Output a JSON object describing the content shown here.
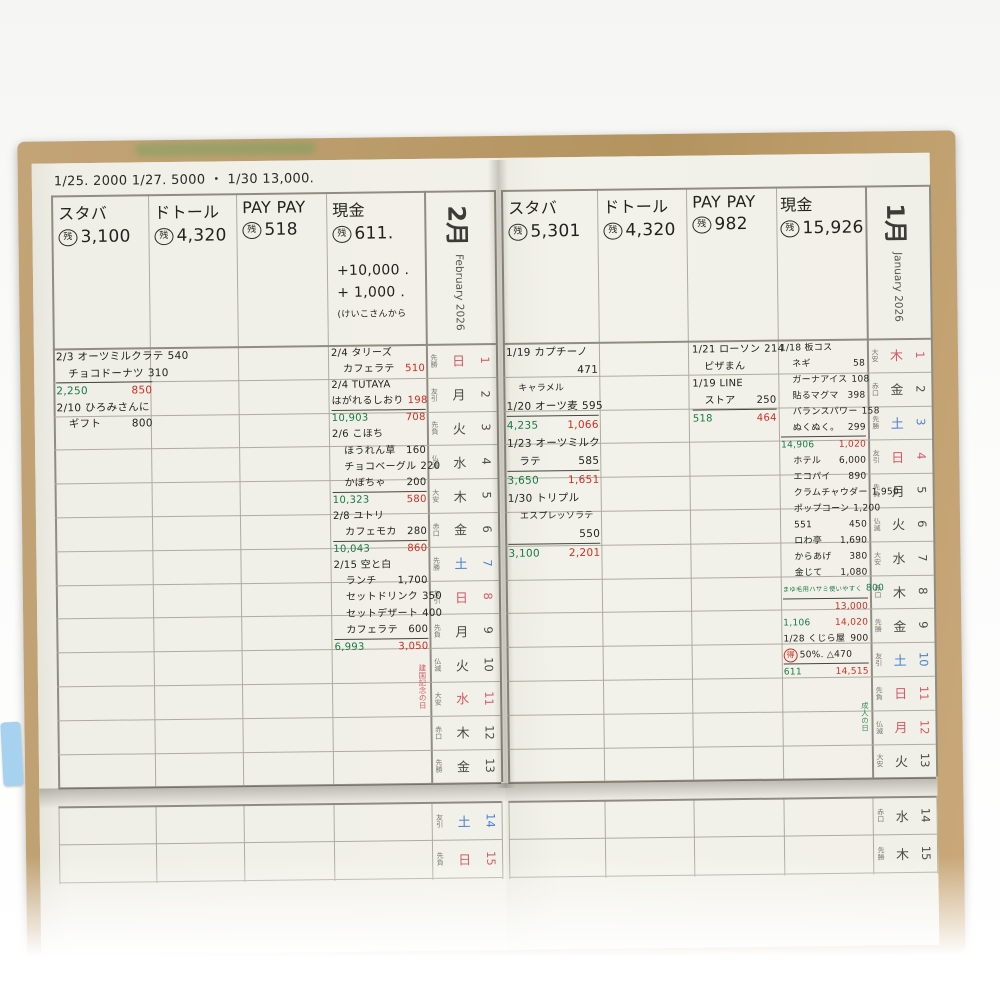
{
  "top_note": "1/25. 2000   1/27. 5000 ・ 1/30 13,000.",
  "zan_label": "残",
  "left_page": {
    "month": {
      "kanji": "2月",
      "en": "February 2026"
    },
    "accounts": [
      {
        "name": "スタバ",
        "balance": "3,100"
      },
      {
        "name": "ドトール",
        "balance": "4,320"
      },
      {
        "name": "PAY PAY",
        "balance": "518"
      },
      {
        "name": "現金",
        "balance": "611."
      }
    ],
    "cash_extra": [
      "+10,000 .",
      "+ 1,000 .",
      "(けいこさんから"
    ],
    "entries": {
      "sutaba": [
        {
          "t": "2/3 オーツミルクラテ",
          "a": "540"
        },
        {
          "t": "チョコドーナツ",
          "a": "310",
          "ind": 1
        },
        {
          "t": "2,250",
          "tc": "g",
          "a": "850",
          "ac": "r",
          "rule": 1,
          "sp": 1
        },
        {
          "t": "2/10 ひろみさんに"
        },
        {
          "t": "ギフト",
          "a": "800",
          "ind": 1
        }
      ],
      "dotoru": [],
      "paypay": [],
      "genkin": [
        {
          "t": "2/4 タリーズ"
        },
        {
          "t": "カフェラテ",
          "a": "510",
          "ac": "r",
          "ind": 1
        },
        {
          "t": "2/4 TUTAYA"
        },
        {
          "t": "はがれるしおり",
          "a": "198",
          "ac": "r"
        },
        {
          "t": "10,903",
          "tc": "g",
          "a": "708",
          "ac": "r",
          "rule": 1,
          "sp": 1
        },
        {
          "t": "2/6 こほち"
        },
        {
          "t": "ほうれん草",
          "a": "160",
          "ind": 1
        },
        {
          "t": "チョコベーグル",
          "a": "220",
          "ind": 1
        },
        {
          "t": "かぼちゃ",
          "a": "200",
          "ind": 1
        },
        {
          "t": "10,323",
          "tc": "g",
          "a": "580",
          "ac": "r",
          "rule": 1,
          "sp": 1
        },
        {
          "t": "2/8 ユトリ"
        },
        {
          "t": "カフェモカ",
          "a": "280",
          "ind": 1
        },
        {
          "t": "10,043",
          "tc": "g",
          "a": "860",
          "ac": "r",
          "rule": 1,
          "sp": 1
        },
        {
          "t": "2/15 空と白"
        },
        {
          "t": "ランチ",
          "a": "1,700",
          "ind": 1
        },
        {
          "t": "セットドリンク",
          "a": "350",
          "ind": 1
        },
        {
          "t": "セットデザート",
          "a": "400",
          "ind": 1
        },
        {
          "t": "カフェラテ",
          "a": "600",
          "ind": 1
        },
        {
          "t": "6,993",
          "tc": "g",
          "a": "3,050",
          "ac": "r",
          "rule": 1,
          "sp": 1
        }
      ]
    },
    "dates": [
      {
        "n": "1",
        "w": "日",
        "r": "先勝",
        "c": "sun"
      },
      {
        "n": "2",
        "w": "月",
        "r": "友引",
        "c": "wk"
      },
      {
        "n": "3",
        "w": "火",
        "r": "先負",
        "c": "wk"
      },
      {
        "n": "4",
        "w": "水",
        "r": "仏滅",
        "c": "wk"
      },
      {
        "n": "5",
        "w": "木",
        "r": "大安",
        "c": "wk"
      },
      {
        "n": "6",
        "w": "金",
        "r": "赤口",
        "c": "wk"
      },
      {
        "n": "7",
        "w": "土",
        "r": "先勝",
        "c": "sat"
      },
      {
        "n": "8",
        "w": "日",
        "r": "友引",
        "c": "sun"
      },
      {
        "n": "9",
        "w": "月",
        "r": "先負",
        "c": "wk"
      },
      {
        "n": "10",
        "w": "火",
        "r": "仏滅",
        "c": "wk"
      },
      {
        "n": "11",
        "w": "水",
        "r": "大安",
        "c": "sun"
      },
      {
        "n": "12",
        "w": "木",
        "r": "赤口",
        "c": "wk"
      },
      {
        "n": "13",
        "w": "金",
        "r": "先勝",
        "c": "wk"
      }
    ],
    "holiday_note": "建国記念の日"
  },
  "right_page": {
    "month": {
      "kanji": "1月",
      "en": "January 2026"
    },
    "accounts": [
      {
        "name": "スタバ",
        "balance": "5,301"
      },
      {
        "name": "ドトール",
        "balance": "4,320"
      },
      {
        "name": "PAY PAY",
        "balance": "982"
      },
      {
        "name": "現金",
        "balance": "15,926"
      }
    ],
    "entries": {
      "sutaba": [
        {
          "t": "1/19 カプチーノ"
        },
        {
          "t": "",
          "a": "471"
        },
        {
          "t": "キャラメル",
          "size": "s",
          "ind": 1
        },
        {
          "t": "1/20 オーツ麦",
          "a": "595"
        },
        {
          "t": "4,235",
          "tc": "g",
          "a": "1,066",
          "ac": "r",
          "rule": 1,
          "sp": 1
        },
        {
          "t": "1/23 オーツミルク"
        },
        {
          "t": "ラテ",
          "a": "585",
          "ind": 1
        },
        {
          "t": "3,650",
          "tc": "g",
          "a": "1,651",
          "ac": "r",
          "rule": 1,
          "sp": 1
        },
        {
          "t": "1/30 トリプル"
        },
        {
          "t": "エスプレッソラテ",
          "size": "s",
          "ind": 1
        },
        {
          "t": "",
          "a": "550"
        },
        {
          "t": "3,100",
          "tc": "g",
          "a": "2,201",
          "ac": "r",
          "rule": 1,
          "sp": 1
        }
      ],
      "dotoru": [],
      "paypay": [
        {
          "t": "1/21 ローソン",
          "a": "214"
        },
        {
          "t": "ピザまん",
          "ind": 1
        },
        {
          "t": "1/19 LINE"
        },
        {
          "t": "ストア",
          "a": "250",
          "ind": 1
        },
        {
          "t": "518",
          "tc": "g",
          "a": "464",
          "ac": "r",
          "rule": 1,
          "sp": 1
        }
      ],
      "genkin": [
        {
          "t": "1/18 板コス"
        },
        {
          "t": "ネギ",
          "a": "58",
          "ind": 1
        },
        {
          "t": "ガーナアイス",
          "a": "108",
          "ind": 1
        },
        {
          "t": "貼るマグマ",
          "a": "398",
          "ind": 1
        },
        {
          "t": "バランスパワー",
          "a": "158",
          "ind": 1
        },
        {
          "t": "ぬくぬく。",
          "a": "299",
          "ind": 1
        },
        {
          "t": "14,906",
          "tc": "g",
          "a": "1,020",
          "ac": "r",
          "rule": 1,
          "sp": 1
        },
        {
          "t": "ホテル",
          "a": "6,000",
          "ind": 1
        },
        {
          "t": "エコパイ",
          "a": "890",
          "ind": 1
        },
        {
          "t": "クラムチャウダー",
          "a": "1,950",
          "ind": 1
        },
        {
          "t": "ポップコーン",
          "a": "1,200",
          "ind": 1
        },
        {
          "t": "551",
          "a": "450",
          "ind": 1
        },
        {
          "t": "ロわ亭",
          "a": "1,690",
          "ind": 1
        },
        {
          "t": "からあげ",
          "a": "380",
          "ind": 1
        },
        {
          "t": "金じて",
          "a": "1,080",
          "ind": 1
        },
        {
          "t": "まゆ毛用ハサミ使いやすく",
          "tc": "g",
          "a": "800",
          "ac": "g",
          "size": "xs"
        },
        {
          "t": "",
          "a": "13,000",
          "ac": "r",
          "rule": 1
        },
        {
          "t": "1,106",
          "tc": "g",
          "a": "14,020",
          "ac": "r",
          "sp": 1
        },
        {
          "t": "1/28 くじら屋",
          "a": "900"
        },
        {
          "badge": "得",
          "t": "50%. △470"
        },
        {
          "t": "611",
          "tc": "g",
          "a": "14,515",
          "ac": "r",
          "rule": 1,
          "sp": 1
        }
      ]
    },
    "dates": [
      {
        "n": "1",
        "w": "木",
        "r": "大安",
        "c": "sun"
      },
      {
        "n": "2",
        "w": "金",
        "r": "赤口",
        "c": "wk"
      },
      {
        "n": "3",
        "w": "土",
        "r": "先勝",
        "c": "sat"
      },
      {
        "n": "4",
        "w": "日",
        "r": "友引",
        "c": "sun"
      },
      {
        "n": "5",
        "w": "月",
        "r": "先負",
        "c": "wk"
      },
      {
        "n": "6",
        "w": "火",
        "r": "仏滅",
        "c": "wk"
      },
      {
        "n": "7",
        "w": "水",
        "r": "大安",
        "c": "wk"
      },
      {
        "n": "8",
        "w": "木",
        "r": "赤口",
        "c": "wk"
      },
      {
        "n": "9",
        "w": "金",
        "r": "先勝",
        "c": "wk"
      },
      {
        "n": "10",
        "w": "土",
        "r": "友引",
        "c": "sat"
      },
      {
        "n": "11",
        "w": "日",
        "r": "先負",
        "c": "sun"
      },
      {
        "n": "12",
        "w": "月",
        "r": "仏滅",
        "c": "sun"
      },
      {
        "n": "13",
        "w": "火",
        "r": "大安",
        "c": "wk"
      }
    ],
    "holiday_note": "成人の日"
  },
  "bottom_strip": {
    "left_dates": [
      {
        "n": "14",
        "w": "土",
        "r": "友引",
        "c": "sat"
      },
      {
        "n": "15",
        "w": "日",
        "r": "先負",
        "c": "sun"
      }
    ],
    "right_dates": [
      {
        "n": "14",
        "w": "水",
        "r": "赤口",
        "c": "wk"
      },
      {
        "n": "15",
        "w": "木",
        "r": "先勝",
        "c": "wk"
      }
    ]
  },
  "colors": {
    "red_pen": "#cf2d22",
    "green_pen": "#177a44",
    "ink": "#23221e",
    "sunday": "#d25b69",
    "saturday": "#4c80d0",
    "cover": "#bb9a68"
  }
}
